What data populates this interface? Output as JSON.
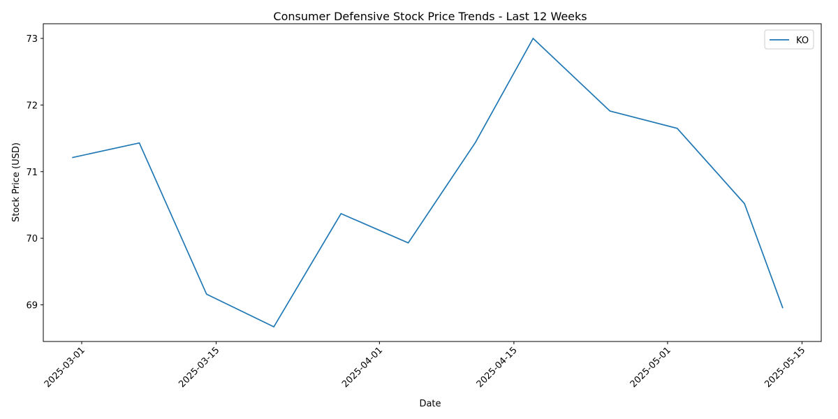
{
  "chart_data": {
    "type": "line",
    "title": "Consumer Defensive Stock Price Trends - Last 12 Weeks",
    "xlabel": "Date",
    "ylabel": "Stock Price (USD)",
    "x": [
      "2025-02-28",
      "2025-03-07",
      "2025-03-14",
      "2025-03-21",
      "2025-03-28",
      "2025-04-04",
      "2025-04-11",
      "2025-04-17",
      "2025-04-25",
      "2025-05-02",
      "2025-05-09",
      "2025-05-13"
    ],
    "series": [
      {
        "name": "KO",
        "color": "#1f77b4",
        "values": [
          71.21,
          71.43,
          69.16,
          68.67,
          70.37,
          69.93,
          71.44,
          73.0,
          71.91,
          71.65,
          70.52,
          68.95
        ]
      }
    ],
    "xlim": [
      "2025-02-25",
      "2025-05-17"
    ],
    "ylim": [
      68.45,
      73.22
    ],
    "xticks": [
      "2025-03-01",
      "2025-03-15",
      "2025-04-01",
      "2025-04-15",
      "2025-05-01",
      "2025-05-15"
    ],
    "yticks": [
      69,
      70,
      71,
      72,
      73
    ],
    "grid": false,
    "legend_position": "top-right"
  }
}
